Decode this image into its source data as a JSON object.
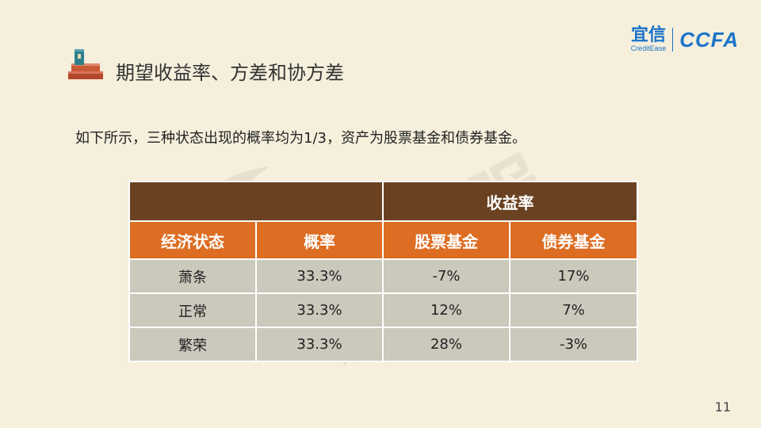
{
  "header": {
    "title": "期望收益率、方差和协方差",
    "logo": {
      "cn": "宜信",
      "en": "CreditEase",
      "ccfa": "CCFA"
    }
  },
  "intro": "如下所示，三种状态出现的概率均为1/3，资产为股票基金和债券基金。",
  "table": {
    "group_header": "收益率",
    "headers": [
      "经济状态",
      "概率",
      "股票基金",
      "债券基金"
    ],
    "rows": [
      [
        "萧条",
        "33.3%",
        "-7%",
        "17%"
      ],
      [
        "正常",
        "33.3%",
        "12%",
        "7%"
      ],
      [
        "繁荣",
        "33.3%",
        "28%",
        "-3%"
      ]
    ]
  },
  "watermark": {
    "cn": "星火金服",
    "en": "xinghuovip.com"
  },
  "page_number": "11",
  "colors": {
    "background": "#f5efdc",
    "table_top": "#6b4221",
    "table_header": "#dd6d22",
    "table_body": "#cbc8bc",
    "logo": "#1a73c9"
  }
}
